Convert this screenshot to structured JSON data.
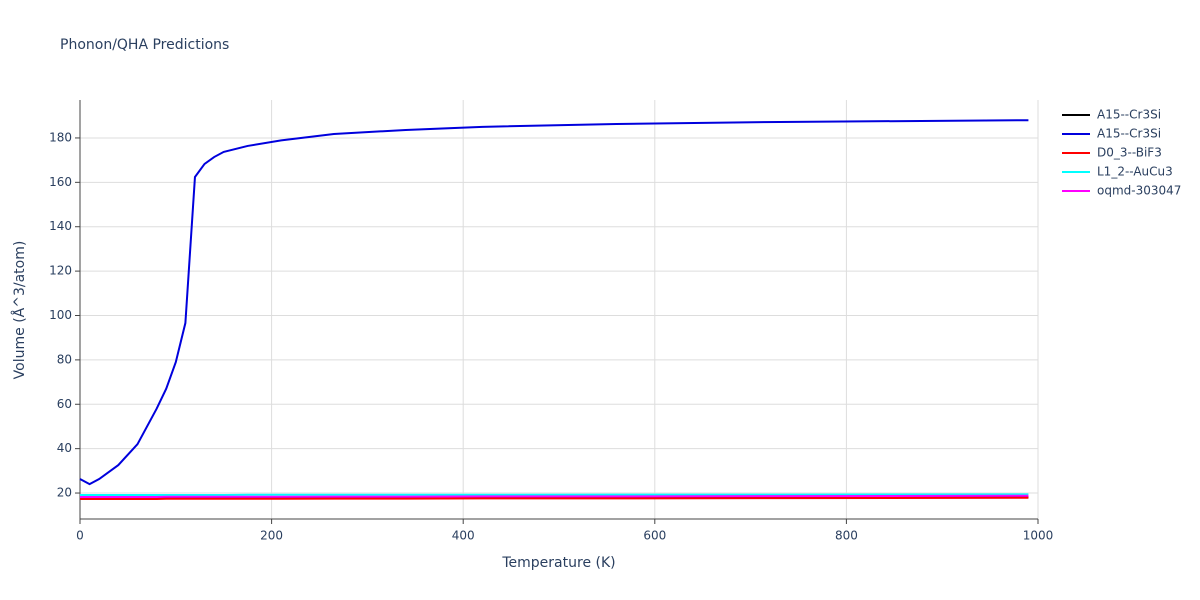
{
  "chart_data": {
    "type": "line",
    "title": "Phonon/QHA Predictions",
    "x_label": "Temperature (K)",
    "y_label": "Volume (Å^3/atom)",
    "x": [
      0,
      10,
      20,
      40,
      60,
      80,
      90,
      100,
      110,
      120,
      130,
      140,
      150,
      175,
      210,
      265,
      340,
      420,
      560,
      730,
      990
    ],
    "series": [
      {
        "name": "A15--Cr3Si",
        "color": "#000000",
        "values": [
          17.8,
          17.8,
          17.8,
          17.8,
          17.8,
          17.8,
          17.8,
          17.8,
          17.8,
          17.8,
          17.9,
          17.9,
          17.9,
          17.9,
          17.9,
          17.9,
          17.9,
          18.0,
          18.0,
          18.1,
          18.2
        ]
      },
      {
        "name": "A15--Cr3Si",
        "color": "#0000dd",
        "values": [
          26.3,
          24,
          26.3,
          32.6,
          42,
          58,
          67,
          79,
          96.6,
          162.4,
          168.3,
          171.4,
          173.7,
          176.4,
          178.9,
          181.8,
          183.6,
          185,
          186.3,
          187.2,
          188
        ]
      },
      {
        "name": "D0_3--BiF3",
        "color": "#ff0000",
        "values": [
          17.3,
          17.3,
          17.3,
          17.3,
          17.3,
          17.3,
          17.4,
          17.4,
          17.4,
          17.4,
          17.4,
          17.4,
          17.4,
          17.4,
          17.4,
          17.5,
          17.5,
          17.6,
          17.6,
          17.7,
          17.9
        ]
      },
      {
        "name": "L1_2--AuCu3",
        "color": "#00ffff",
        "values": [
          19.1,
          19.1,
          19.1,
          19.1,
          19.1,
          19.1,
          19.1,
          19.1,
          19.1,
          19.1,
          19.1,
          19.1,
          19.1,
          19.2,
          19.2,
          19.2,
          19.2,
          19.2,
          19.3,
          19.3,
          19.4
        ]
      },
      {
        "name": "oqmd-303047",
        "color": "#ff00ff",
        "values": [
          18.2,
          18.2,
          18.2,
          18.2,
          18.2,
          18.2,
          18.3,
          18.3,
          18.3,
          18.3,
          18.3,
          18.3,
          18.3,
          18.3,
          18.3,
          18.4,
          18.4,
          18.5,
          18.5,
          18.6,
          18.8
        ]
      }
    ],
    "xlim": [
      0,
      1000
    ],
    "xticks": [
      0,
      200,
      400,
      600,
      800,
      1000
    ],
    "ylim": [
      8.3,
      197.1
    ],
    "yticks": [
      20,
      40,
      60,
      80,
      100,
      120,
      140,
      160,
      180
    ],
    "grid": true,
    "legend": "right"
  }
}
